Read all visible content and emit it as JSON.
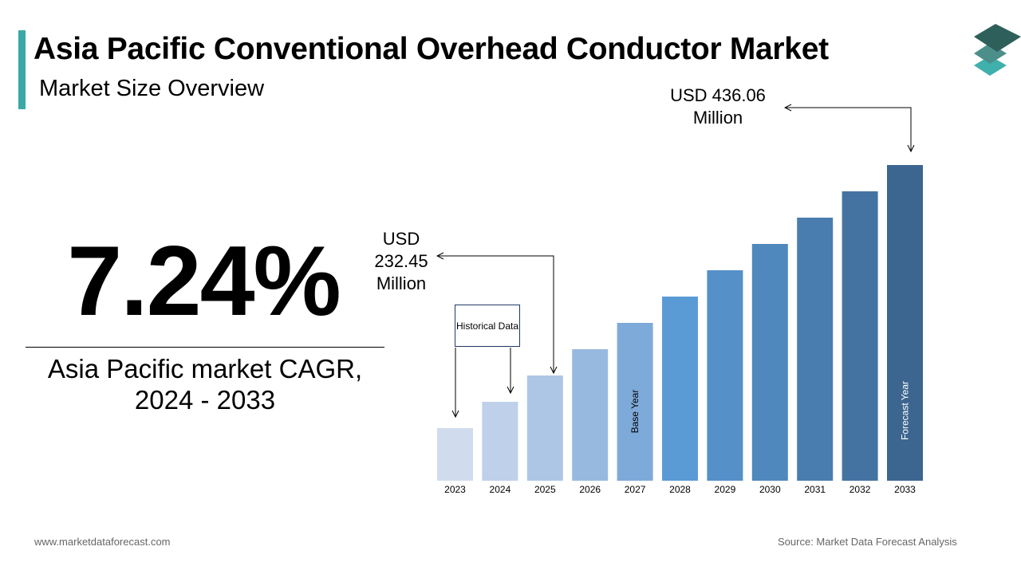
{
  "header": {
    "title": "Asia Pacific Conventional Overhead Conductor Market",
    "subtitle": "Market Size Overview"
  },
  "kpi": {
    "cagr_value": "7.24%",
    "cagr_label_line1": "Asia Pacific market CAGR,",
    "cagr_label_line2": "2024 - 2033"
  },
  "footer": {
    "website": "www.marketdataforecast.com",
    "source": "Source: Market Data Forecast Analysis"
  },
  "logo": {
    "icon": "stacked-layers-icon",
    "colors": [
      "#2f5f5a",
      "#4c8f8a",
      "#3fb0ac"
    ]
  },
  "chart_data": {
    "type": "bar",
    "title": "",
    "xlabel": "",
    "ylabel": "",
    "grid": false,
    "categories": [
      "2023",
      "2024",
      "2025",
      "2026",
      "2027",
      "2028",
      "2029",
      "2030",
      "2031",
      "2032",
      "2033"
    ],
    "values": [
      2,
      3,
      4,
      5,
      6,
      7,
      8,
      9,
      10,
      11,
      12
    ],
    "colors": [
      "#d0dcee",
      "#bed0ea",
      "#adc6e5",
      "#98b9df",
      "#7eaad9",
      "#5b9bd5",
      "#5590c8",
      "#4f88bc",
      "#4a7daf",
      "#4473a1",
      "#3c6690"
    ],
    "bar_labels": {
      "2027": "Base Year",
      "2033": "Forecast Year"
    },
    "annotations": {
      "historical": "Historical Data",
      "start_value_line1": "USD",
      "start_value_line2": "232.45",
      "start_value_line3": "Million",
      "end_value_line1": "USD 436.06",
      "end_value_line2": "Million"
    }
  }
}
